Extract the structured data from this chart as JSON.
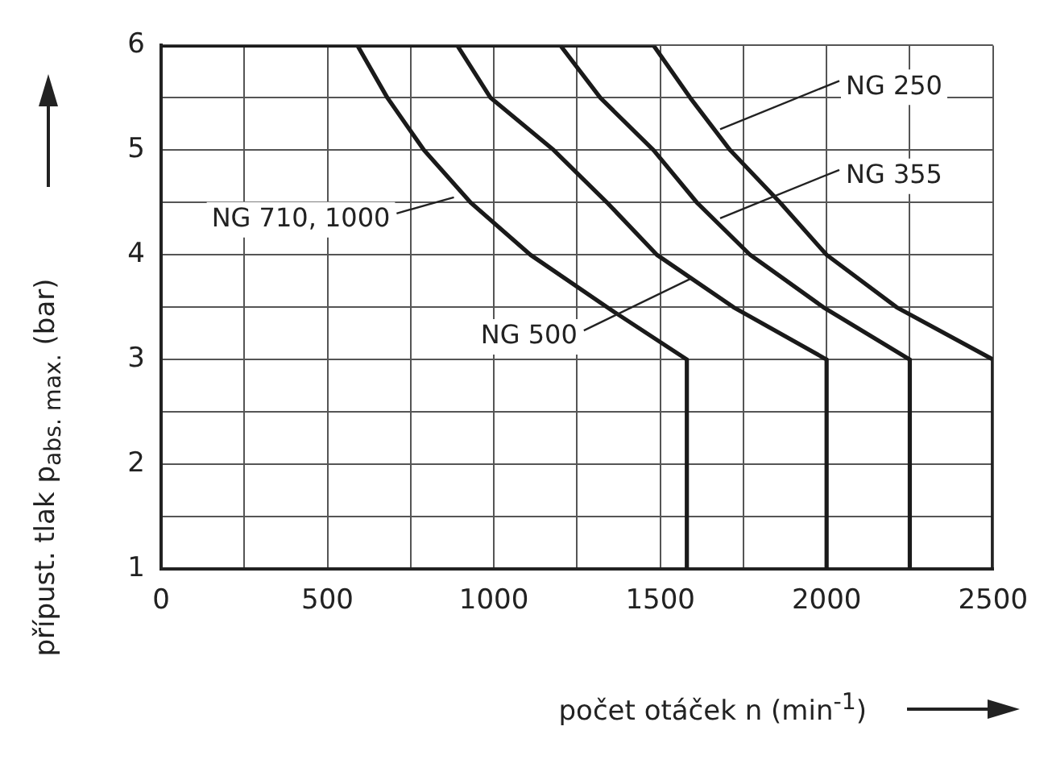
{
  "chart_data": {
    "type": "line",
    "xlabel": "počet otáček n (min$^{-1}$)",
    "ylabel": "přípust. tlak p$_{abs. max.}$ (bar)",
    "xlim": [
      0,
      2500
    ],
    "ylim": [
      1,
      6
    ],
    "xticks": [
      0,
      {
        "value": 250,
        "label": null
      },
      500,
      {
        "value": 750,
        "label": null
      },
      1000,
      {
        "value": 1250,
        "label": null
      },
      1500,
      {
        "value": 1750,
        "label": null
      },
      2000,
      {
        "value": 2250,
        "label": null
      },
      2500
    ],
    "yticks": [
      1,
      {
        "value": 1.5,
        "label": null
      },
      2,
      {
        "value": 2.5,
        "label": null
      },
      3,
      {
        "value": 3.5,
        "label": null
      },
      4,
      {
        "value": 4.5,
        "label": null
      },
      5,
      {
        "value": 5.5,
        "label": null
      },
      6
    ],
    "grid": true,
    "legend": false,
    "marker": "none",
    "line_style": "solid",
    "series": [
      {
        "color": "#1a1a1a",
        "x": [
          0,
          590,
          680,
          790,
          930,
          1110,
          1340,
          1580,
          1580
        ],
        "values": [
          6,
          6,
          5.5,
          5,
          4.5,
          4,
          3.5,
          3,
          1
        ]
      },
      {
        "color": "#1a1a1a",
        "x": [
          0,
          890,
          990,
          1180,
          1340,
          1490,
          1720,
          2000,
          2000
        ],
        "values": [
          6,
          6,
          5.5,
          5,
          4.5,
          4,
          3.5,
          3,
          1
        ]
      },
      {
        "color": "#1a1a1a",
        "x": [
          0,
          1200,
          1320,
          1480,
          1610,
          1770,
          1990,
          2250,
          2250
        ],
        "values": [
          6,
          6,
          5.5,
          5,
          4.5,
          4,
          3.5,
          3,
          1
        ]
      },
      {
        "color": "#1a1a1a",
        "x": [
          0,
          1480,
          1590,
          1710,
          1860,
          2000,
          2210,
          2500,
          2500
        ],
        "values": [
          6,
          6,
          5.5,
          5,
          4.5,
          4,
          3.5,
          3,
          1
        ]
      }
    ],
    "annotations": [
      {
        "text": "NG 710, 1000",
        "x": 880,
        "y": 4.55
      },
      {
        "text": "NG 500",
        "x": 1590,
        "y": 3.77
      },
      {
        "text": "NG 355",
        "x": 1680,
        "y": 4.35
      },
      {
        "text": "NG 250",
        "x": 1680,
        "y": 5.2
      }
    ]
  }
}
